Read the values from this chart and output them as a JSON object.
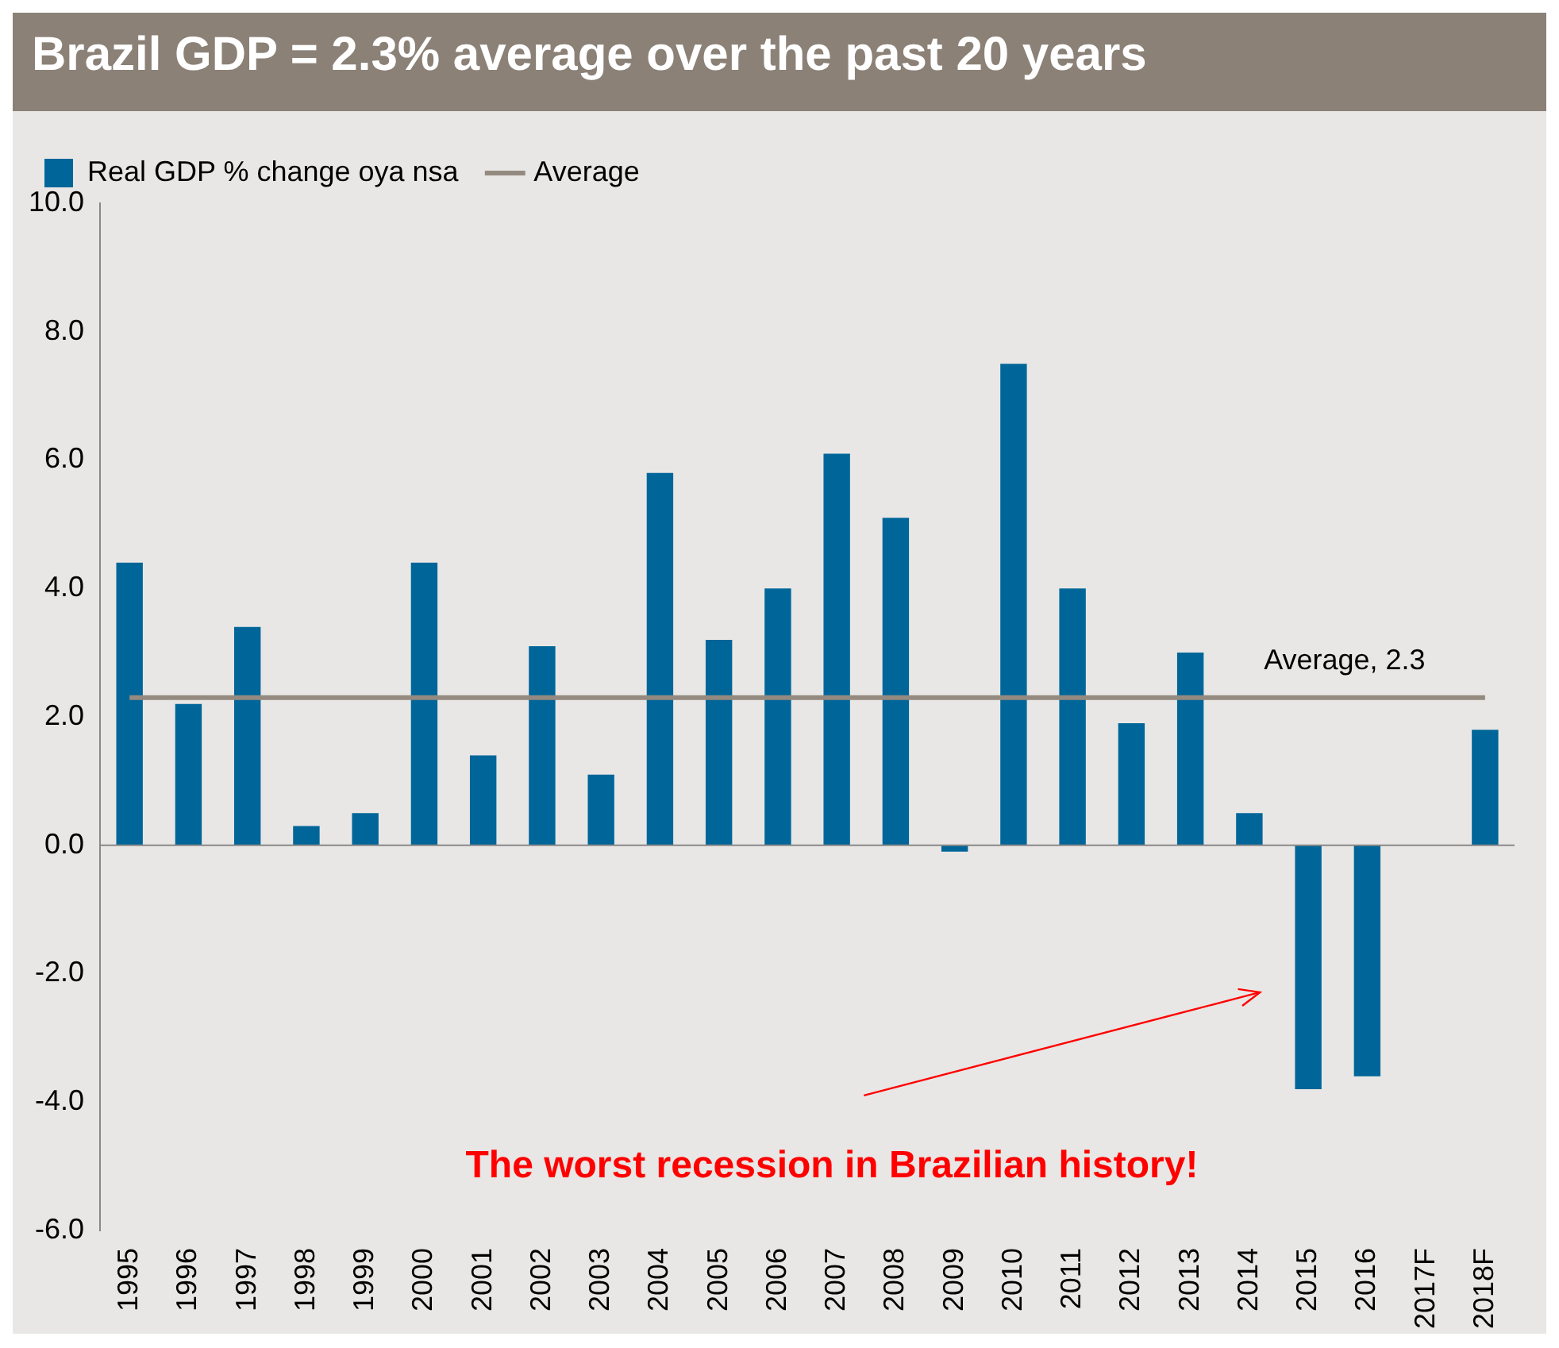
{
  "chart_data": {
    "type": "bar",
    "title": "Brazil GDP = 2.3% average over the past 20 years",
    "categories": [
      "1995",
      "1996",
      "1997",
      "1998",
      "1999",
      "2000",
      "2001",
      "2002",
      "2003",
      "2004",
      "2005",
      "2006",
      "2007",
      "2008",
      "2009",
      "2010",
      "2011",
      "2012",
      "2013",
      "2014",
      "2015",
      "2016",
      "2017F",
      "2018F"
    ],
    "series": [
      {
        "name": "Real GDP % change oya nsa",
        "color": "#006699",
        "values": [
          4.4,
          2.2,
          3.4,
          0.3,
          0.5,
          4.4,
          1.4,
          3.1,
          1.1,
          5.8,
          3.2,
          4.0,
          6.1,
          5.1,
          -0.1,
          7.5,
          4.0,
          1.9,
          3.0,
          0.5,
          -3.8,
          -3.6,
          null,
          1.8
        ]
      },
      {
        "name": "Average",
        "type": "line",
        "color": "#948a80",
        "values": [
          2.3,
          2.3,
          2.3,
          2.3,
          2.3,
          2.3,
          2.3,
          2.3,
          2.3,
          2.3,
          2.3,
          2.3,
          2.3,
          2.3,
          2.3,
          2.3,
          2.3,
          2.3,
          2.3,
          2.3,
          2.3,
          2.3,
          2.3,
          2.3
        ]
      }
    ],
    "ylim": [
      -6,
      10
    ],
    "yticks": [
      {
        "value": -6,
        "label": "-6.0"
      },
      {
        "value": -4,
        "label": "-4.0"
      },
      {
        "value": -2,
        "label": "-2.0"
      },
      {
        "value": 0,
        "label": "0.0"
      },
      {
        "value": 2,
        "label": "2.0"
      },
      {
        "value": 4,
        "label": "4.0"
      },
      {
        "value": 6,
        "label": "6.0"
      },
      {
        "value": 8,
        "label": "8.0"
      },
      {
        "value": 10,
        "label": "10.0"
      }
    ],
    "grid": false,
    "legend": "top left",
    "marker": "none",
    "annotations": [
      {
        "text": "Average, 2.3",
        "x": "2014",
        "y": 2.3
      },
      "The worst recession in Brazilian history!"
    ]
  }
}
